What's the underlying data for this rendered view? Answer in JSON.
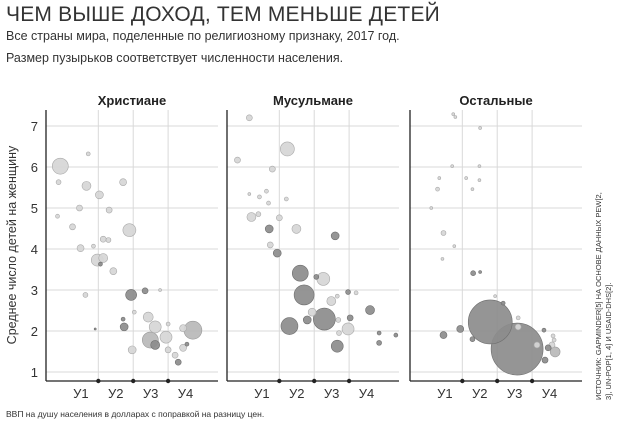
{
  "header": {
    "title": "ЧЕМ ВЫШЕ ДОХОД, ТЕМ МЕНЬШЕ ДЕТЕЙ",
    "subtitle1": "Все страны мира, поделенные по религиозному признаку, 2017 год.",
    "subtitle2": "Размер пузырьков соответствует численности населения."
  },
  "source_note": "ИСТОЧНИК: GAPMINDER[5] НА ОСНОВЕ ДАННЫХ PEW[2, 3], UN-POP[1, 4] И USAID-DHS[2].",
  "x_note": "ВВП на душу населения в долларах с поправкой на разницу цен.",
  "colors": {
    "light": "#d6d6d6",
    "mid": "#b9b9b9",
    "dark": "#8c8c8c",
    "grid": "#d9d9d9",
    "axis": "#222222"
  },
  "chart_data": {
    "type": "scatter",
    "ylabel": "Среднее число детей на женщину",
    "yticks": [
      1,
      2,
      3,
      4,
      5,
      6,
      7
    ],
    "ylim": [
      0.8,
      7.7
    ],
    "xlim": [
      0.5,
      5.43
    ],
    "x_scale": "log income levels",
    "xticks": [
      "У1",
      "У2",
      "У3",
      "У4"
    ],
    "x_level_boundaries": [
      2,
      3,
      4
    ],
    "grid": true,
    "panels": [
      {
        "title": "Христиане",
        "points": [
          [
            0.91,
            6.02,
            178,
            "light"
          ],
          [
            0.86,
            5.63,
            17,
            "light"
          ],
          [
            1.71,
            6.32,
            11,
            "light"
          ],
          [
            1.66,
            5.54,
            56,
            "light"
          ],
          [
            2.03,
            5.32,
            44,
            "light"
          ],
          [
            2.71,
            5.63,
            34,
            "light"
          ],
          [
            1.46,
            5.0,
            25,
            "light"
          ],
          [
            0.83,
            4.8,
            11,
            "light"
          ],
          [
            1.26,
            4.54,
            25,
            "light"
          ],
          [
            2.89,
            4.46,
            117,
            "light"
          ],
          [
            2.31,
            4.95,
            25,
            "light"
          ],
          [
            2.14,
            4.24,
            25,
            "light"
          ],
          [
            2.29,
            4.22,
            17,
            "light"
          ],
          [
            1.49,
            4.02,
            34,
            "light"
          ],
          [
            1.86,
            4.07,
            11,
            "light"
          ],
          [
            1.97,
            3.73,
            100,
            "light"
          ],
          [
            2.14,
            3.78,
            56,
            "light"
          ],
          [
            2.06,
            3.63,
            11,
            "dark"
          ],
          [
            2.43,
            3.46,
            34,
            "light"
          ],
          [
            1.63,
            2.88,
            17,
            "light"
          ],
          [
            2.94,
            2.88,
            84,
            "dark"
          ],
          [
            3.34,
            2.98,
            25,
            "dark"
          ],
          [
            3.43,
            2.34,
            69,
            "light"
          ],
          [
            3.63,
            2.1,
            100,
            "light"
          ],
          [
            2.74,
            2.1,
            44,
            "dark"
          ],
          [
            2.71,
            2.29,
            11,
            "dark"
          ],
          [
            3.49,
            1.78,
            178,
            "mid"
          ],
          [
            3.63,
            1.66,
            56,
            "dark"
          ],
          [
            3.94,
            1.85,
            100,
            "light"
          ],
          [
            2.97,
            1.54,
            44,
            "light"
          ],
          [
            4.71,
            2.02,
            225,
            "mid"
          ],
          [
            4.43,
            2.07,
            34,
            "light"
          ],
          [
            4.0,
            1.54,
            25,
            "light"
          ],
          [
            4.2,
            1.41,
            25,
            "light"
          ],
          [
            4.43,
            1.59,
            34,
            "light"
          ],
          [
            4.29,
            1.24,
            25,
            "dark"
          ],
          [
            4.54,
            1.68,
            11,
            "dark"
          ],
          [
            4.0,
            2.17,
            11,
            "light"
          ],
          [
            3.03,
            2.46,
            11,
            "light"
          ],
          [
            3.77,
            3.0,
            6,
            "light"
          ],
          [
            1.91,
            2.05,
            3,
            "dark"
          ]
        ]
      },
      {
        "title": "Мусульмане",
        "points": [
          [
            1.14,
            7.2,
            25,
            "light"
          ],
          [
            2.23,
            6.44,
            136,
            "light"
          ],
          [
            0.8,
            6.17,
            25,
            "light"
          ],
          [
            1.8,
            5.95,
            25,
            "light"
          ],
          [
            1.69,
            5.12,
            11,
            "light"
          ],
          [
            1.63,
            5.41,
            11,
            "light"
          ],
          [
            1.14,
            5.34,
            6,
            "light"
          ],
          [
            1.43,
            5.27,
            11,
            "light"
          ],
          [
            2.2,
            5.22,
            11,
            "light"
          ],
          [
            1.2,
            4.78,
            56,
            "light"
          ],
          [
            1.4,
            4.85,
            17,
            "light"
          ],
          [
            2.0,
            4.76,
            25,
            "light"
          ],
          [
            2.49,
            4.49,
            56,
            "light"
          ],
          [
            1.71,
            4.49,
            44,
            "dark"
          ],
          [
            3.6,
            4.32,
            44,
            "dark"
          ],
          [
            1.74,
            4.1,
            25,
            "light"
          ],
          [
            1.94,
            3.9,
            44,
            "dark"
          ],
          [
            2.6,
            3.41,
            178,
            "dark"
          ],
          [
            3.26,
            3.27,
            117,
            "light"
          ],
          [
            3.06,
            3.32,
            17,
            "dark"
          ],
          [
            2.71,
            2.88,
            278,
            "dark"
          ],
          [
            3.49,
            2.73,
            56,
            "light"
          ],
          [
            3.29,
            2.29,
            336,
            "dark"
          ],
          [
            2.94,
            2.46,
            44,
            "light"
          ],
          [
            2.8,
            2.27,
            44,
            "dark"
          ],
          [
            2.29,
            2.12,
            200,
            "dark"
          ],
          [
            3.97,
            2.05,
            100,
            "light"
          ],
          [
            3.66,
            1.63,
            100,
            "dark"
          ],
          [
            4.03,
            2.32,
            25,
            "dark"
          ],
          [
            4.6,
            2.51,
            56,
            "dark"
          ],
          [
            3.97,
            2.95,
            17,
            "dark"
          ],
          [
            3.66,
            2.85,
            11,
            "light"
          ],
          [
            4.2,
            2.93,
            11,
            "light"
          ],
          [
            3.69,
            2.27,
            17,
            "light"
          ],
          [
            3.71,
            1.95,
            17,
            "light"
          ],
          [
            4.86,
            1.95,
            11,
            "dark"
          ],
          [
            5.34,
            1.9,
            11,
            "dark"
          ],
          [
            4.86,
            1.71,
            17,
            "dark"
          ]
        ]
      },
      {
        "title": "Остальные",
        "points": [
          [
            2.8,
            2.22,
            1344,
            "dark"
          ],
          [
            3.57,
            1.56,
            1878,
            "dark"
          ],
          [
            1.46,
            1.9,
            34,
            "dark"
          ],
          [
            1.94,
            2.05,
            34,
            "dark"
          ],
          [
            2.31,
            3.41,
            17,
            "dark"
          ],
          [
            2.51,
            3.44,
            6,
            "dark"
          ],
          [
            2.29,
            1.8,
            17,
            "dark"
          ],
          [
            4.14,
            1.66,
            25,
            "light"
          ],
          [
            4.66,
            1.49,
            69,
            "mid"
          ],
          [
            4.57,
            1.66,
            25,
            "light"
          ],
          [
            4.37,
            1.29,
            25,
            "dark"
          ],
          [
            4.46,
            1.59,
            25,
            "dark"
          ],
          [
            4.63,
            1.78,
            11,
            "light"
          ],
          [
            3.6,
            2.1,
            25,
            "light"
          ],
          [
            3.6,
            2.32,
            11,
            "light"
          ],
          [
            4.6,
            1.88,
            11,
            "light"
          ],
          [
            1.46,
            4.39,
            17,
            "light"
          ],
          [
            1.29,
            5.46,
            11,
            "light"
          ],
          [
            1.71,
            6.02,
            6,
            "light"
          ],
          [
            2.49,
            6.02,
            6,
            "light"
          ],
          [
            2.49,
            5.68,
            6,
            "light"
          ],
          [
            2.29,
            5.46,
            6,
            "light"
          ],
          [
            2.11,
            5.73,
            6,
            "light"
          ],
          [
            1.34,
            5.73,
            6,
            "light"
          ],
          [
            1.74,
            7.29,
            6,
            "light"
          ],
          [
            1.8,
            7.22,
            6,
            "light"
          ],
          [
            2.51,
            6.95,
            6,
            "light"
          ],
          [
            1.43,
            3.76,
            6,
            "light"
          ],
          [
            1.77,
            4.07,
            6,
            "light"
          ],
          [
            1.11,
            5.0,
            6,
            "light"
          ],
          [
            4.34,
            2.02,
            11,
            "dark"
          ],
          [
            3.17,
            2.68,
            11,
            "dark"
          ],
          [
            2.94,
            2.85,
            6,
            "light"
          ]
        ]
      }
    ]
  }
}
